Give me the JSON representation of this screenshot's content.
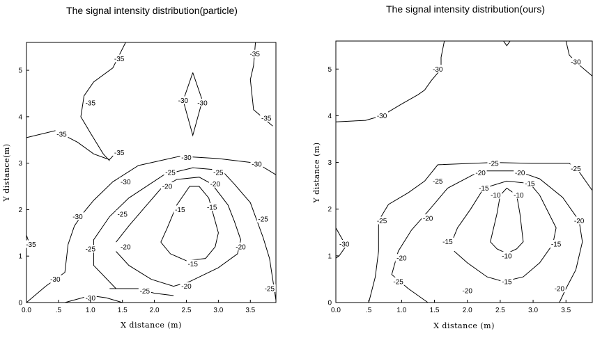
{
  "chart_data": [
    {
      "type": "contour",
      "title": "The signal intensity distribution(particle)",
      "xlabel": "X distance (m)",
      "ylabel": "Y distance(m)",
      "xlim": [
        0,
        3.9
      ],
      "ylim": [
        0,
        5.6
      ],
      "x_ticks": [
        "0.0",
        ".5",
        "1.0",
        "1.5",
        "2.0",
        "2.5",
        "3.0",
        "3.5"
      ],
      "y_ticks": [
        "0",
        "1",
        "2",
        "3",
        "4",
        "5"
      ],
      "contours": [
        {
          "level": -35,
          "points": [
            [
              1.55,
              5.6
            ],
            [
              1.35,
              5.05
            ],
            [
              1.05,
              4.75
            ],
            [
              0.9,
              4.45
            ],
            [
              0.85,
              4.0
            ],
            [
              1.0,
              3.65
            ],
            [
              1.2,
              3.2
            ],
            [
              1.3,
              3.05
            ]
          ],
          "labels": [
            [
              1.45,
              5.25
            ],
            [
              1.0,
              4.3
            ]
          ]
        },
        {
          "level": -35,
          "points": [
            [
              0.0,
              3.55
            ],
            [
              0.45,
              3.7
            ],
            [
              0.8,
              3.45
            ],
            [
              1.05,
              3.2
            ],
            [
              1.25,
              3.1
            ],
            [
              1.3,
              3.08
            ],
            [
              1.45,
              3.3
            ]
          ],
          "labels": [
            [
              0.55,
              3.62
            ],
            [
              1.45,
              3.23
            ]
          ]
        },
        {
          "level": -35,
          "points": [
            [
              3.58,
              5.6
            ],
            [
              3.55,
              5.1
            ],
            [
              3.5,
              4.8
            ],
            [
              3.55,
              4.15
            ],
            [
              3.85,
              3.8
            ]
          ],
          "labels": [
            [
              3.57,
              5.35
            ],
            [
              3.75,
              3.97
            ]
          ]
        },
        {
          "level": -35,
          "points": [
            [
              0.0,
              1.45
            ],
            [
              0.05,
              1.25
            ]
          ],
          "labels": [
            [
              0.07,
              1.25
            ]
          ]
        },
        {
          "level": -30,
          "points": [
            [
              2.6,
              4.95
            ],
            [
              2.45,
              4.35
            ],
            [
              2.6,
              3.6
            ],
            [
              2.75,
              4.35
            ],
            [
              2.6,
              4.95
            ]
          ],
          "labels": [
            [
              2.45,
              4.35
            ],
            [
              2.75,
              4.3
            ]
          ]
        },
        {
          "level": -30,
          "points": [
            [
              0.0,
              0.0
            ],
            [
              0.3,
              0.35
            ],
            [
              0.6,
              0.65
            ],
            [
              0.65,
              1.25
            ],
            [
              0.75,
              1.65
            ],
            [
              0.9,
              1.95
            ],
            [
              1.05,
              2.2
            ],
            [
              1.35,
              2.6
            ],
            [
              1.75,
              2.95
            ],
            [
              2.4,
              3.15
            ],
            [
              3.0,
              3.1
            ],
            [
              3.6,
              3.0
            ],
            [
              3.9,
              2.75
            ]
          ],
          "labels": [
            [
              0.45,
              0.5
            ],
            [
              0.8,
              1.85
            ],
            [
              1.55,
              2.6
            ],
            [
              2.5,
              3.12
            ],
            [
              3.6,
              2.98
            ]
          ]
        },
        {
          "level": -30,
          "points": [
            [
              0.6,
              0.0
            ],
            [
              1.0,
              0.15
            ],
            [
              1.25,
              0.1
            ],
            [
              1.5,
              0.0
            ]
          ],
          "labels": [
            [
              1.0,
              0.1
            ]
          ]
        },
        {
          "level": -25,
          "points": [
            [
              1.4,
              0.3
            ],
            [
              1.05,
              0.8
            ],
            [
              1.05,
              1.35
            ],
            [
              1.3,
              1.85
            ],
            [
              1.6,
              2.25
            ],
            [
              2.15,
              2.75
            ],
            [
              2.6,
              2.9
            ],
            [
              3.05,
              2.85
            ],
            [
              3.25,
              2.55
            ],
            [
              3.5,
              2.15
            ],
            [
              3.7,
              1.4
            ],
            [
              3.8,
              0.95
            ],
            [
              3.9,
              0.05
            ]
          ],
          "labels": [
            [
              1.0,
              1.15
            ],
            [
              1.5,
              1.9
            ],
            [
              2.25,
              2.8
            ],
            [
              3.0,
              2.8
            ],
            [
              3.7,
              1.8
            ],
            [
              3.8,
              0.3
            ]
          ]
        },
        {
          "level": -25,
          "points": [
            [
              1.3,
              0.3
            ],
            [
              1.75,
              0.3
            ],
            [
              2.0,
              0.2
            ],
            [
              2.3,
              0.15
            ]
          ],
          "labels": [
            [
              1.85,
              0.25
            ]
          ]
        },
        {
          "level": -20,
          "points": [
            [
              1.4,
              1.3
            ],
            [
              1.6,
              1.65
            ],
            [
              1.85,
              2.05
            ],
            [
              2.1,
              2.45
            ],
            [
              2.35,
              2.65
            ],
            [
              2.7,
              2.7
            ],
            [
              2.9,
              2.55
            ],
            [
              3.15,
              2.1
            ],
            [
              3.25,
              1.75
            ],
            [
              3.35,
              1.35
            ],
            [
              3.3,
              1.05
            ],
            [
              3.0,
              0.75
            ],
            [
              2.55,
              0.45
            ],
            [
              2.3,
              0.35
            ],
            [
              1.95,
              0.5
            ],
            [
              1.6,
              0.8
            ],
            [
              1.4,
              1.1
            ]
          ],
          "labels": [
            [
              1.55,
              1.2
            ],
            [
              2.2,
              2.5
            ],
            [
              2.95,
              2.55
            ],
            [
              3.35,
              1.2
            ],
            [
              2.5,
              0.35
            ]
          ]
        },
        {
          "level": -15,
          "points": [
            [
              2.1,
              1.3
            ],
            [
              2.2,
              1.6
            ],
            [
              2.35,
              2.1
            ],
            [
              2.45,
              2.3
            ],
            [
              2.55,
              2.5
            ],
            [
              2.7,
              2.5
            ],
            [
              2.85,
              2.25
            ],
            [
              2.9,
              2.0
            ],
            [
              3.0,
              1.5
            ],
            [
              2.95,
              1.2
            ],
            [
              2.8,
              0.95
            ],
            [
              2.5,
              0.9
            ],
            [
              2.25,
              1.05
            ],
            [
              2.1,
              1.3
            ]
          ],
          "labels": [
            [
              2.4,
              2.0
            ],
            [
              2.9,
              2.05
            ],
            [
              2.6,
              0.83
            ]
          ]
        }
      ]
    },
    {
      "type": "contour",
      "title": "The signal intensity distribution(ours)",
      "xlabel": "X distance (m)",
      "ylabel": "Y distance (m)",
      "xlim": [
        0,
        3.9
      ],
      "ylim": [
        0,
        5.6
      ],
      "x_ticks": [
        "0.0",
        ".5",
        "1.0",
        "1.5",
        "2.0",
        "2.5",
        "3.0",
        "3.5"
      ],
      "y_ticks": [
        "0",
        "1",
        "2",
        "3",
        "4",
        "5"
      ],
      "contours": [
        {
          "level": -30,
          "points": [
            [
              0.0,
              3.87
            ],
            [
              0.45,
              3.9
            ],
            [
              0.7,
              4.0
            ],
            [
              1.0,
              4.25
            ],
            [
              1.25,
              4.45
            ],
            [
              1.35,
              4.55
            ],
            [
              1.45,
              4.75
            ],
            [
              1.6,
              5.0
            ],
            [
              1.6,
              5.25
            ],
            [
              1.65,
              5.6
            ]
          ],
          "labels": [
            [
              0.7,
              4.0
            ],
            [
              1.55,
              5.0
            ]
          ]
        },
        {
          "level": -30,
          "points": [
            [
              2.55,
              5.6
            ],
            [
              2.6,
              5.5
            ],
            [
              2.65,
              5.6
            ]
          ],
          "labels": []
        },
        {
          "level": -30,
          "points": [
            [
              3.5,
              5.6
            ],
            [
              3.55,
              5.3
            ],
            [
              3.65,
              5.15
            ],
            [
              3.9,
              4.85
            ]
          ],
          "labels": [
            [
              3.65,
              5.15
            ]
          ]
        },
        {
          "level": -30,
          "points": [
            [
              0.0,
              1.6
            ],
            [
              0.1,
              1.35
            ],
            [
              0.15,
              1.2
            ],
            [
              0.05,
              1.0
            ],
            [
              0.0,
              0.95
            ]
          ],
          "labels": [
            [
              0.13,
              1.25
            ]
          ]
        },
        {
          "level": -25,
          "points": [
            [
              0.5,
              0.0
            ],
            [
              0.6,
              0.55
            ],
            [
              0.65,
              1.1
            ],
            [
              0.65,
              1.75
            ],
            [
              0.8,
              2.1
            ],
            [
              1.1,
              2.35
            ],
            [
              1.35,
              2.6
            ],
            [
              1.55,
              2.95
            ],
            [
              2.4,
              3.0
            ],
            [
              3.0,
              2.98
            ],
            [
              3.55,
              2.98
            ],
            [
              3.7,
              2.8
            ],
            [
              3.9,
              2.4
            ]
          ],
          "labels": [
            [
              0.7,
              1.75
            ],
            [
              1.55,
              2.6
            ],
            [
              2.4,
              2.98
            ],
            [
              3.65,
              2.87
            ],
            [
              0.95,
              0.45
            ]
          ]
        },
        {
          "level": -20,
          "points": [
            [
              1.4,
              0.0
            ],
            [
              1.1,
              0.3
            ],
            [
              0.85,
              0.6
            ],
            [
              0.95,
              1.1
            ],
            [
              1.15,
              1.55
            ],
            [
              1.4,
              1.95
            ],
            [
              1.7,
              2.45
            ],
            [
              2.2,
              2.82
            ],
            [
              2.75,
              2.82
            ],
            [
              3.1,
              2.65
            ],
            [
              3.45,
              2.25
            ],
            [
              3.7,
              1.75
            ],
            [
              3.75,
              1.3
            ],
            [
              3.65,
              0.7
            ],
            [
              3.5,
              0.3
            ],
            [
              3.4,
              0.0
            ]
          ],
          "labels": [
            [
              1.0,
              0.95
            ],
            [
              1.4,
              1.8
            ],
            [
              2.2,
              2.78
            ],
            [
              2.8,
              2.78
            ],
            [
              3.7,
              1.75
            ],
            [
              3.4,
              0.3
            ],
            [
              2.0,
              0.25
            ]
          ]
        },
        {
          "level": -15,
          "points": [
            [
              1.75,
              1.25
            ],
            [
              1.85,
              1.6
            ],
            [
              2.05,
              2.0
            ],
            [
              2.25,
              2.45
            ],
            [
              2.6,
              2.6
            ],
            [
              2.95,
              2.55
            ],
            [
              3.1,
              2.3
            ],
            [
              3.35,
              1.6
            ],
            [
              3.3,
              1.25
            ],
            [
              3.1,
              0.85
            ],
            [
              2.85,
              0.55
            ],
            [
              2.55,
              0.45
            ],
            [
              2.3,
              0.55
            ],
            [
              2.0,
              0.85
            ],
            [
              1.8,
              1.1
            ]
          ],
          "labels": [
            [
              1.7,
              1.3
            ],
            [
              2.25,
              2.45
            ],
            [
              2.95,
              2.55
            ],
            [
              3.35,
              1.25
            ],
            [
              2.6,
              0.45
            ]
          ]
        },
        {
          "level": -10,
          "points": [
            [
              2.35,
              1.3
            ],
            [
              2.45,
              1.9
            ],
            [
              2.5,
              2.3
            ],
            [
              2.6,
              2.45
            ],
            [
              2.75,
              2.3
            ],
            [
              2.8,
              1.9
            ],
            [
              2.85,
              1.3
            ],
            [
              2.75,
              1.15
            ],
            [
              2.6,
              1.05
            ],
            [
              2.45,
              1.15
            ],
            [
              2.35,
              1.3
            ]
          ],
          "labels": [
            [
              2.43,
              2.3
            ],
            [
              2.78,
              2.3
            ],
            [
              2.6,
              1.0
            ]
          ]
        }
      ]
    }
  ]
}
